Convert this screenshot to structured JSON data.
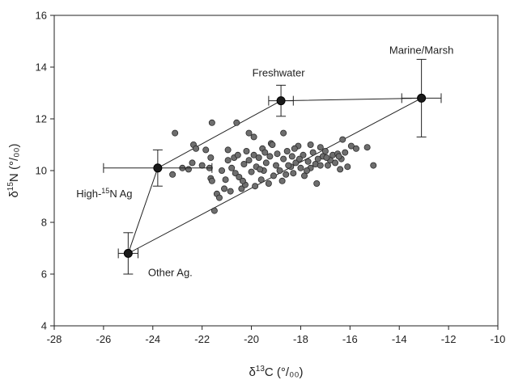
{
  "chart_data": {
    "type": "scatter",
    "xlabel": {
      "delta": "δ",
      "sup": "13",
      "elem": "C",
      "unit": " (°/₀₀)"
    },
    "ylabel": {
      "delta": "δ",
      "sup": "15",
      "elem": "N",
      "unit": " (°/₀₀)"
    },
    "xlim": [
      -28,
      -10
    ],
    "ylim": [
      4,
      16
    ],
    "xticks": [
      -28,
      -26,
      -24,
      -22,
      -20,
      -18,
      -16,
      -14,
      -12,
      -10
    ],
    "yticks": [
      4,
      6,
      8,
      10,
      12,
      14,
      16
    ],
    "grid": false,
    "sources": [
      {
        "label": "Freshwater",
        "x": -18.8,
        "y": 12.7,
        "xerr": 0.5,
        "yerr": 0.6
      },
      {
        "label": "Marine/Marsh",
        "x": -13.1,
        "y": 12.8,
        "xerr": 0.8,
        "yerr": 1.5
      },
      {
        "label_pre": "High-",
        "label_sup": "15",
        "label_post": "N Ag",
        "x": -23.8,
        "y": 10.1,
        "xerr": 2.2,
        "yerr": 0.7
      },
      {
        "label": "Other Ag.",
        "x": -25.0,
        "y": 6.8,
        "xerr": 0.4,
        "yerr": 0.8
      }
    ],
    "mixing_polygon_order": [
      3,
      2,
      0,
      1
    ],
    "points": [
      [
        -23.1,
        11.45
      ],
      [
        -22.35,
        11.0
      ],
      [
        -22.25,
        10.85
      ],
      [
        -21.6,
        11.85
      ],
      [
        -20.6,
        11.85
      ],
      [
        -20.1,
        11.45
      ],
      [
        -19.9,
        11.3
      ],
      [
        -18.7,
        11.45
      ],
      [
        -19.2,
        11.05
      ],
      [
        -17.6,
        11.0
      ],
      [
        -17.2,
        10.9
      ],
      [
        -16.3,
        11.2
      ],
      [
        -15.95,
        10.95
      ],
      [
        -15.75,
        10.85
      ],
      [
        -15.3,
        10.9
      ],
      [
        -15.05,
        10.2
      ],
      [
        -23.2,
        9.85
      ],
      [
        -22.8,
        10.1
      ],
      [
        -22.4,
        10.3
      ],
      [
        -22.55,
        10.05
      ],
      [
        -22.0,
        10.2
      ],
      [
        -21.85,
        10.8
      ],
      [
        -21.65,
        10.5
      ],
      [
        -21.7,
        10.1
      ],
      [
        -21.65,
        9.7
      ],
      [
        -21.6,
        9.6
      ],
      [
        -21.4,
        9.1
      ],
      [
        -21.3,
        8.95
      ],
      [
        -21.5,
        8.45
      ],
      [
        -21.1,
        9.3
      ],
      [
        -21.05,
        9.65
      ],
      [
        -20.95,
        10.4
      ],
      [
        -20.8,
        10.1
      ],
      [
        -20.7,
        10.5
      ],
      [
        -20.65,
        9.9
      ],
      [
        -20.5,
        9.75
      ],
      [
        -20.4,
        9.3
      ],
      [
        -20.85,
        9.2
      ],
      [
        -20.3,
        10.25
      ],
      [
        -20.2,
        10.75
      ],
      [
        -20.1,
        10.4
      ],
      [
        -20.0,
        9.95
      ],
      [
        -19.9,
        10.6
      ],
      [
        -19.85,
        9.4
      ],
      [
        -19.8,
        10.15
      ],
      [
        -19.7,
        10.5
      ],
      [
        -19.6,
        9.65
      ],
      [
        -19.55,
        10.85
      ],
      [
        -19.5,
        10.0
      ],
      [
        -19.4,
        10.3
      ],
      [
        -19.3,
        9.5
      ],
      [
        -19.25,
        10.55
      ],
      [
        -19.1,
        9.8
      ],
      [
        -19.0,
        10.2
      ],
      [
        -18.95,
        10.65
      ],
      [
        -18.85,
        10.0
      ],
      [
        -18.75,
        9.6
      ],
      [
        -18.7,
        10.45
      ],
      [
        -18.6,
        9.85
      ],
      [
        -18.55,
        10.75
      ],
      [
        -18.4,
        10.15
      ],
      [
        -18.35,
        10.55
      ],
      [
        -18.3,
        9.9
      ],
      [
        -18.2,
        10.3
      ],
      [
        -18.1,
        10.95
      ],
      [
        -18.0,
        10.1
      ],
      [
        -17.9,
        10.6
      ],
      [
        -17.85,
        9.8
      ],
      [
        -17.7,
        10.35
      ],
      [
        -17.6,
        10.1
      ],
      [
        -17.5,
        10.7
      ],
      [
        -17.4,
        10.25
      ],
      [
        -17.35,
        9.5
      ],
      [
        -17.2,
        10.2
      ],
      [
        -17.1,
        10.55
      ],
      [
        -17.0,
        10.75
      ],
      [
        -16.9,
        10.2
      ],
      [
        -16.8,
        10.4
      ],
      [
        -16.7,
        10.6
      ],
      [
        -16.6,
        10.3
      ],
      [
        -16.5,
        10.65
      ],
      [
        -16.4,
        10.05
      ],
      [
        -16.35,
        10.45
      ],
      [
        -16.2,
        10.7
      ],
      [
        -16.1,
        10.15
      ],
      [
        -18.25,
        10.85
      ],
      [
        -19.15,
        11.0
      ],
      [
        -20.55,
        10.6
      ],
      [
        -20.25,
        9.45
      ],
      [
        -19.65,
        10.05
      ],
      [
        -18.05,
        10.45
      ],
      [
        -17.75,
        10.0
      ],
      [
        -16.95,
        10.5
      ],
      [
        -16.45,
        10.55
      ],
      [
        -20.95,
        10.8
      ],
      [
        -19.45,
        10.7
      ],
      [
        -18.5,
        10.2
      ],
      [
        -17.3,
        10.45
      ],
      [
        -21.2,
        10.0
      ],
      [
        -20.35,
        9.6
      ]
    ]
  }
}
